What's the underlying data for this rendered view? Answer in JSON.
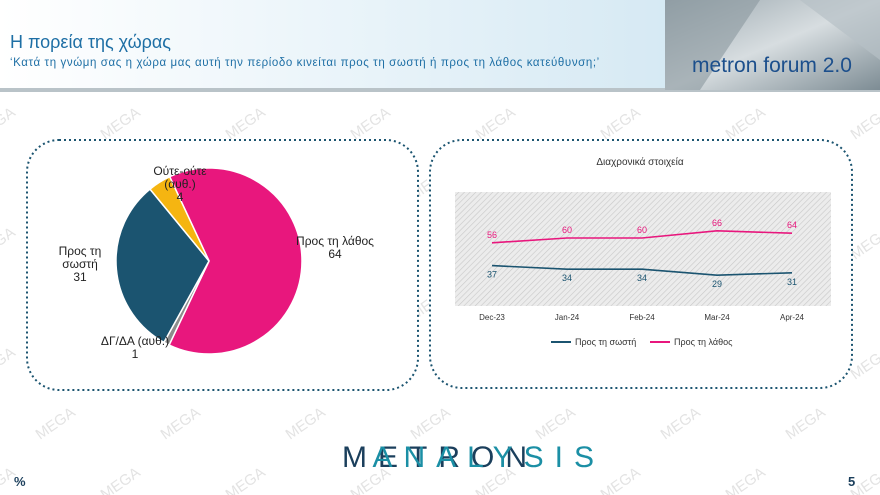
{
  "header": {
    "title": "Η πορεία της χώρας",
    "subtitle": "‘Κατά τη γνώμη σας η χώρα μας αυτή την περίοδο κινείται προς τη σωστή ή προς τη λάθος κατεύθυνση;’",
    "badge": "metron forum 2.0"
  },
  "watermark": "MEGA",
  "footer": {
    "logo_left": "METRON",
    "logo_right": "ANALYSIS",
    "unit": "%",
    "page": "5"
  },
  "chart_data": [
    {
      "type": "pie",
      "categories": [
        "Προς τη λάθος",
        "ΔΓ/ΔΑ (αυθ.)",
        "Προς τη σωστή",
        "Ούτε-ούτε (αυθ.)"
      ],
      "values": [
        64,
        1,
        31,
        4
      ],
      "colors": [
        "#e8177d",
        "#8c8c8c",
        "#1b5470",
        "#f5b511"
      ]
    },
    {
      "type": "line",
      "title": "Διαχρονικά στοιχεία",
      "categories": [
        "Dec-23",
        "Jan-24",
        "Feb-24",
        "Mar-24",
        "Apr-24"
      ],
      "series": [
        {
          "name": "Προς τη σωστή",
          "color": "#1b5470",
          "values": [
            37,
            34,
            34,
            29,
            31
          ]
        },
        {
          "name": "Προς τη λάθος",
          "color": "#e8177d",
          "values": [
            56,
            60,
            60,
            66,
            64
          ]
        }
      ],
      "ylim": [
        0,
        100
      ],
      "legend": "bottom"
    }
  ]
}
